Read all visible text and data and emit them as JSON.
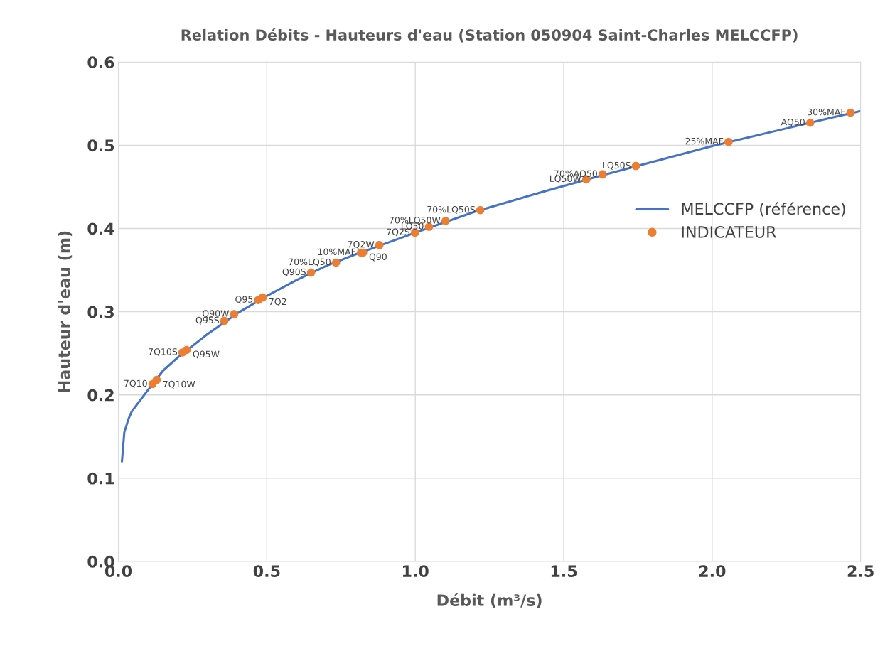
{
  "chart_data": {
    "type": "line",
    "title": "Relation Débits - Hauteurs d'eau (Station 050904 Saint-Charles MELCCFP)",
    "xlabel": "Débit (m³/s)",
    "ylabel": "Hauteur d'eau (m)",
    "xlim": [
      0,
      2.5
    ],
    "ylim": [
      0,
      0.6
    ],
    "xticks": [
      {
        "value": 0,
        "label": "0.0"
      },
      0.5,
      {
        "value": 1,
        "label": "1.0"
      },
      1.5,
      {
        "value": 2,
        "label": "2.0"
      },
      2.5
    ],
    "yticks": [
      {
        "value": 0,
        "label": "0.0"
      },
      0.1,
      0.2,
      0.3,
      0.4,
      0.5,
      0.6
    ],
    "grid": true,
    "legend": "right",
    "series": [
      {
        "name": "MELCCFP (référence)",
        "color": "#4472c4",
        "marker": "none",
        "x": [
          0.012,
          0.02,
          0.034,
          0.045,
          0.07,
          0.1,
          0.15,
          0.2,
          0.3,
          0.4,
          0.5,
          0.6,
          0.7,
          0.8,
          0.9,
          1.0,
          1.2,
          1.4,
          1.6,
          1.8,
          2.0,
          2.2,
          2.4,
          2.5
        ],
        "values": [
          0.12,
          0.155,
          0.171,
          0.18,
          0.192,
          0.206,
          0.229,
          0.245,
          0.273,
          0.298,
          0.319,
          0.338,
          0.355,
          0.369,
          0.382,
          0.395,
          0.42,
          0.441,
          0.461,
          0.48,
          0.499,
          0.516,
          0.533,
          0.541
        ]
      },
      {
        "name": "INDICATEUR",
        "type": "scatter",
        "color": "#ed7d31",
        "marker": "circle",
        "x": [
          0.115,
          0.129,
          0.216,
          0.23,
          0.357,
          0.39,
          0.471,
          0.486,
          0.649,
          0.733,
          0.817,
          0.824,
          0.879,
          0.999,
          1.046,
          1.102,
          1.219,
          1.576,
          1.631,
          1.743,
          2.055,
          2.33,
          2.466
        ],
        "values": [
          0.213,
          0.218,
          0.251,
          0.254,
          0.289,
          0.297,
          0.314,
          0.317,
          0.347,
          0.359,
          0.371,
          0.371,
          0.38,
          0.395,
          0.402,
          0.409,
          0.422,
          0.459,
          0.465,
          0.475,
          0.504,
          0.527,
          0.539
        ]
      }
    ],
    "annotations": [
      {
        "text": "7Q10",
        "x": 0.115,
        "y": 0.213
      },
      {
        "text": "7Q10W",
        "x": 0.129,
        "y": 0.218
      },
      {
        "text": "7Q10S",
        "x": 0.216,
        "y": 0.251
      },
      {
        "text": "Q95W",
        "x": 0.23,
        "y": 0.254
      },
      {
        "text": "Q95S",
        "x": 0.357,
        "y": 0.289
      },
      {
        "text": "Q90W",
        "x": 0.39,
        "y": 0.297
      },
      {
        "text": "Q95",
        "x": 0.471,
        "y": 0.314
      },
      {
        "text": "7Q2",
        "x": 0.486,
        "y": 0.317
      },
      {
        "text": "Q90S",
        "x": 0.649,
        "y": 0.347
      },
      {
        "text": "70%LQ50",
        "x": 0.733,
        "y": 0.359
      },
      {
        "text": "10%MAF",
        "x": 0.817,
        "y": 0.371
      },
      {
        "text": "Q90",
        "x": 0.824,
        "y": 0.371
      },
      {
        "text": "7Q2W",
        "x": 0.879,
        "y": 0.38
      },
      {
        "text": "7Q2S",
        "x": 0.999,
        "y": 0.395
      },
      {
        "text": "LQ50",
        "x": 1.046,
        "y": 0.402
      },
      {
        "text": "70%LQ50W",
        "x": 1.102,
        "y": 0.409
      },
      {
        "text": "70%LQ50S",
        "x": 1.219,
        "y": 0.422
      },
      {
        "text": "LQ50W",
        "x": 1.576,
        "y": 0.459
      },
      {
        "text": "70%AQ50",
        "x": 1.631,
        "y": 0.465
      },
      {
        "text": "LQ50S",
        "x": 1.743,
        "y": 0.475
      },
      {
        "text": "25%MAF",
        "x": 2.055,
        "y": 0.504
      },
      {
        "text": "AQ50",
        "x": 2.33,
        "y": 0.527
      },
      {
        "text": "30%MAF",
        "x": 2.466,
        "y": 0.539
      }
    ]
  }
}
